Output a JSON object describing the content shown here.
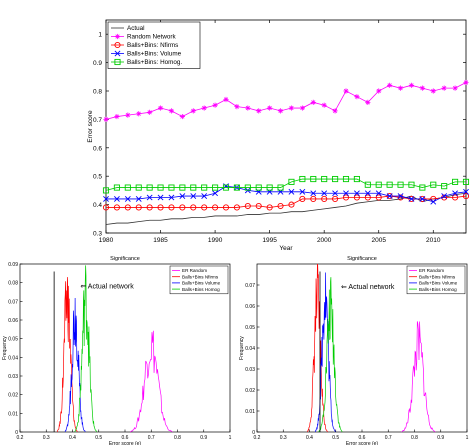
{
  "chart_data": [
    {
      "id": "top",
      "type": "line",
      "title": "",
      "xlabel": "Year",
      "ylabel": "Error score",
      "xlim": [
        1980,
        2013
      ],
      "ylim": [
        0.3,
        1.05
      ],
      "xticks": [
        1980,
        1985,
        1990,
        1995,
        2000,
        2005,
        2010
      ],
      "yticks": [
        0.3,
        0.4,
        0.5,
        0.6,
        0.7,
        0.8,
        0.9,
        1
      ],
      "legend_position": "top-left",
      "x": [
        1980,
        1981,
        1982,
        1983,
        1984,
        1985,
        1986,
        1987,
        1988,
        1989,
        1990,
        1991,
        1992,
        1993,
        1994,
        1995,
        1996,
        1997,
        1998,
        1999,
        2000,
        2001,
        2002,
        2003,
        2004,
        2005,
        2006,
        2007,
        2008,
        2009,
        2010,
        2011,
        2012,
        2013
      ],
      "series": [
        {
          "name": "Actual",
          "color": "#333333",
          "marker": "none",
          "values": [
            0.33,
            0.335,
            0.335,
            0.34,
            0.345,
            0.345,
            0.35,
            0.35,
            0.355,
            0.355,
            0.36,
            0.36,
            0.36,
            0.365,
            0.365,
            0.37,
            0.37,
            0.375,
            0.375,
            0.38,
            0.385,
            0.39,
            0.395,
            0.405,
            0.41,
            0.415,
            0.415,
            0.42,
            0.43,
            0.41,
            0.42,
            0.425,
            0.435,
            0.44
          ]
        },
        {
          "name": "Random Network",
          "color": "#ff00ff",
          "marker": "star",
          "values": [
            0.7,
            0.71,
            0.715,
            0.72,
            0.725,
            0.74,
            0.73,
            0.71,
            0.73,
            0.74,
            0.75,
            0.77,
            0.745,
            0.74,
            0.73,
            0.74,
            0.73,
            0.74,
            0.74,
            0.76,
            0.75,
            0.73,
            0.8,
            0.78,
            0.76,
            0.8,
            0.82,
            0.81,
            0.82,
            0.81,
            0.8,
            0.81,
            0.81,
            0.83
          ]
        },
        {
          "name": "Balls+Bins: Nfirms",
          "color": "#ff0000",
          "marker": "circle",
          "values": [
            0.39,
            0.39,
            0.39,
            0.39,
            0.39,
            0.39,
            0.39,
            0.39,
            0.39,
            0.39,
            0.39,
            0.39,
            0.39,
            0.395,
            0.395,
            0.39,
            0.395,
            0.4,
            0.42,
            0.42,
            0.42,
            0.42,
            0.425,
            0.425,
            0.425,
            0.425,
            0.43,
            0.425,
            0.42,
            0.42,
            0.42,
            0.425,
            0.425,
            0.43
          ]
        },
        {
          "name": "Balls+Bins: Volume",
          "color": "#0000ff",
          "marker": "x",
          "values": [
            0.42,
            0.42,
            0.42,
            0.42,
            0.425,
            0.425,
            0.425,
            0.43,
            0.43,
            0.43,
            0.44,
            0.465,
            0.46,
            0.45,
            0.445,
            0.445,
            0.445,
            0.445,
            0.445,
            0.44,
            0.44,
            0.44,
            0.44,
            0.44,
            0.44,
            0.44,
            0.43,
            0.43,
            0.42,
            0.42,
            0.41,
            0.43,
            0.44,
            0.445
          ]
        },
        {
          "name": "Balls+Bins: Homog.",
          "color": "#00cc00",
          "marker": "square",
          "values": [
            0.45,
            0.46,
            0.46,
            0.46,
            0.46,
            0.46,
            0.46,
            0.46,
            0.46,
            0.46,
            0.46,
            0.46,
            0.46,
            0.46,
            0.46,
            0.46,
            0.46,
            0.48,
            0.49,
            0.49,
            0.49,
            0.49,
            0.49,
            0.49,
            0.47,
            0.47,
            0.47,
            0.47,
            0.47,
            0.46,
            0.47,
            0.465,
            0.48,
            0.48
          ]
        }
      ]
    },
    {
      "id": "bottom-left",
      "type": "area",
      "title": "Significance",
      "xlabel": "Error score (e)",
      "ylabel": "Frequency",
      "xlim": [
        0.2,
        1
      ],
      "ylim": [
        0,
        0.09
      ],
      "xticks": [
        0.2,
        0.3,
        0.4,
        0.5,
        0.6,
        0.7,
        0.8,
        0.9,
        1
      ],
      "yticks": [
        0,
        0.01,
        0.02,
        0.03,
        0.04,
        0.05,
        0.06,
        0.07,
        0.08,
        0.09
      ],
      "legend_position": "top-right",
      "annotation": {
        "text": "⇐ Actual network",
        "x": 0.43,
        "y": 0.077,
        "marker_x": 0.33
      },
      "series": [
        {
          "name": "ER Random",
          "color": "#ff00ff",
          "center": 0.7,
          "spread": 0.025,
          "peak": 0.047
        },
        {
          "name": "Balls+Bins Nfirms",
          "color": "#ff0000",
          "center": 0.38,
          "spread": 0.012,
          "peak": 0.072
        },
        {
          "name": "Balls+Bins Volume",
          "color": "#0000ff",
          "center": 0.41,
          "spread": 0.012,
          "peak": 0.064
        },
        {
          "name": "Balls+Bins Homog",
          "color": "#00cc00",
          "center": 0.45,
          "spread": 0.013,
          "peak": 0.072
        }
      ]
    },
    {
      "id": "bottom-right",
      "type": "area",
      "title": "Significance",
      "xlabel": "Error score (e)",
      "ylabel": "Frequency",
      "xlim": [
        0.2,
        1
      ],
      "ylim": [
        0,
        0.08
      ],
      "xticks": [
        0.2,
        0.3,
        0.4,
        0.5,
        0.6,
        0.7,
        0.8,
        0.9,
        1
      ],
      "yticks": [
        0,
        0.01,
        0.02,
        0.03,
        0.04,
        0.05,
        0.06,
        0.07
      ],
      "legend_position": "top-right",
      "annotation": {
        "text": "⇐ Actual network",
        "x": 0.52,
        "y": 0.068,
        "marker_x": 0.44
      },
      "series": [
        {
          "name": "ER Random",
          "color": "#ff00ff",
          "center": 0.815,
          "spread": 0.02,
          "peak": 0.042
        },
        {
          "name": "Balls+Bins Nfirms",
          "color": "#ff0000",
          "center": 0.43,
          "spread": 0.012,
          "peak": 0.063
        },
        {
          "name": "Balls+Bins Volume",
          "color": "#0000ff",
          "center": 0.46,
          "spread": 0.012,
          "peak": 0.066
        },
        {
          "name": "Balls+Bins Homog",
          "color": "#00cc00",
          "center": 0.48,
          "spread": 0.014,
          "peak": 0.058
        }
      ]
    }
  ]
}
